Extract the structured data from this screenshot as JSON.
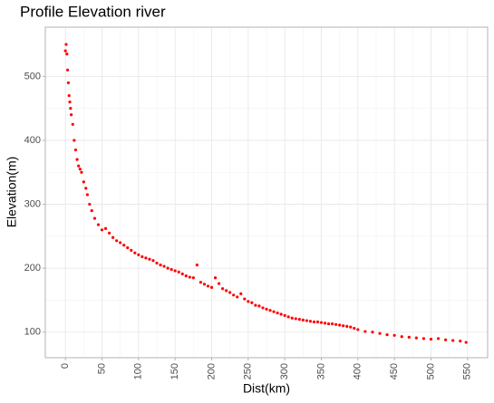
{
  "chart_data": {
    "type": "scatter",
    "title": "Profile Elevation river",
    "x_label": "Dist(km)",
    "y_label": "Elevation(m)",
    "color": "#ff0000",
    "grid": true,
    "xlim": [
      -27.5,
      577.5
    ],
    "ylim": [
      60,
      577
    ],
    "xticks": [
      0,
      50,
      100,
      150,
      200,
      250,
      300,
      350,
      400,
      450,
      500,
      550
    ],
    "yticks": [
      100,
      200,
      300,
      400,
      500
    ],
    "x": [
      0,
      1,
      2,
      3,
      4,
      5,
      6,
      7,
      8,
      10,
      12,
      14,
      16,
      18,
      20,
      22,
      25,
      28,
      30,
      33,
      36,
      40,
      45,
      50,
      55,
      60,
      65,
      70,
      75,
      80,
      85,
      90,
      95,
      100,
      105,
      110,
      115,
      120,
      125,
      130,
      135,
      140,
      145,
      150,
      155,
      160,
      165,
      170,
      175,
      180,
      185,
      190,
      195,
      200,
      205,
      210,
      215,
      220,
      225,
      230,
      235,
      240,
      245,
      250,
      255,
      260,
      265,
      270,
      275,
      280,
      285,
      290,
      295,
      300,
      305,
      310,
      315,
      320,
      325,
      330,
      335,
      340,
      345,
      350,
      355,
      360,
      365,
      370,
      375,
      380,
      385,
      390,
      395,
      400,
      410,
      420,
      430,
      440,
      450,
      460,
      470,
      480,
      490,
      500,
      510,
      520,
      530,
      540,
      548
    ],
    "y": [
      540,
      550,
      535,
      510,
      490,
      470,
      460,
      450,
      440,
      425,
      400,
      385,
      370,
      360,
      355,
      350,
      335,
      325,
      315,
      300,
      290,
      278,
      268,
      260,
      262,
      255,
      248,
      243,
      240,
      236,
      232,
      228,
      224,
      221,
      218,
      216,
      214,
      212,
      208,
      205,
      203,
      200,
      198,
      196,
      194,
      191,
      188,
      186,
      185,
      205,
      178,
      175,
      172,
      170,
      185,
      176,
      168,
      165,
      162,
      158,
      155,
      160,
      152,
      148,
      146,
      142,
      141,
      138,
      136,
      134,
      132,
      130,
      128,
      126,
      124,
      122,
      121,
      120,
      119,
      118,
      117,
      116,
      116,
      115,
      114,
      113,
      113,
      112,
      111,
      110,
      109,
      108,
      106,
      104,
      101,
      100,
      98,
      96,
      95,
      93,
      92,
      91,
      90,
      89,
      90,
      88,
      87,
      86,
      84
    ]
  }
}
